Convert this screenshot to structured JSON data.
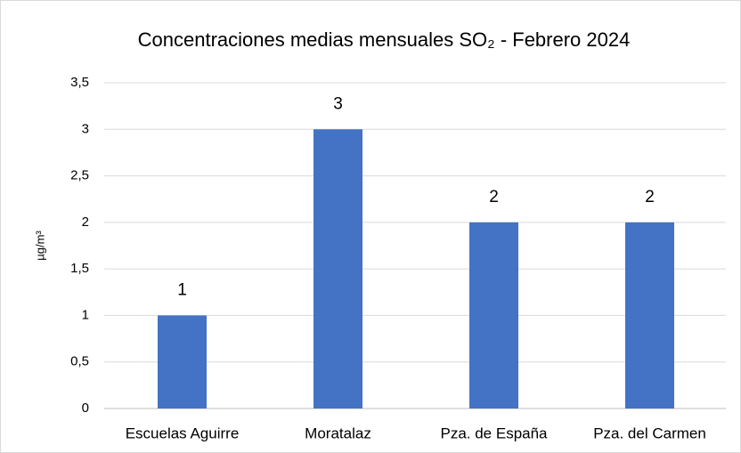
{
  "chart_data": {
    "type": "bar",
    "title": "Concentraciones medias mensuales SO₂ - Febrero 2024",
    "ylabel": "µg/m³",
    "categories": [
      "Escuelas Aguirre",
      "Moratalaz",
      "Pza. de España",
      "Pza. del Carmen"
    ],
    "values": [
      1,
      3,
      2,
      2
    ],
    "color": "#4472c4",
    "ylim": [
      0,
      3.5
    ],
    "yticks": [
      0,
      {
        "value": 0.5,
        "label": "0,5"
      },
      1,
      {
        "value": 1.5,
        "label": "1,5"
      },
      2,
      {
        "value": 2.5,
        "label": "2,5"
      },
      3,
      {
        "value": 3.5,
        "label": "3,5"
      }
    ],
    "grid": true
  }
}
